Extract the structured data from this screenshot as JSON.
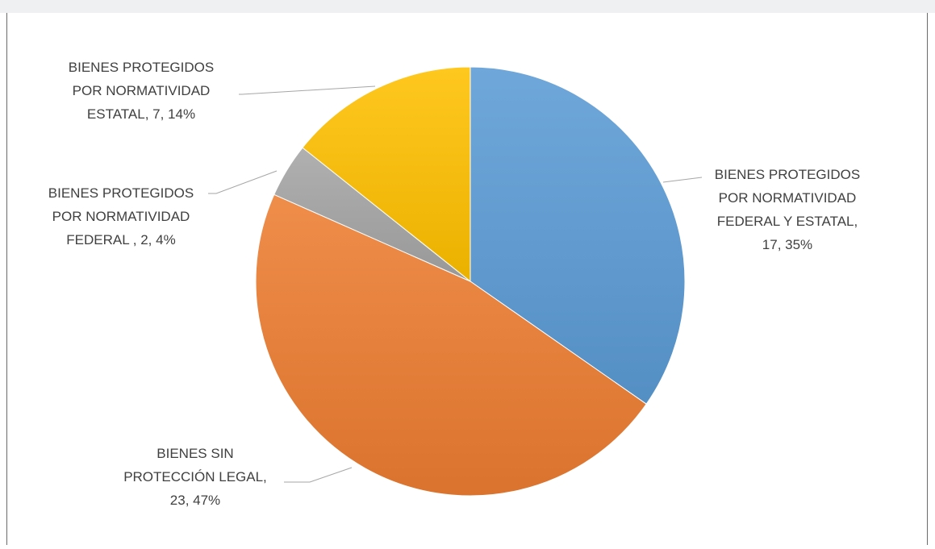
{
  "chart_data": {
    "type": "pie",
    "title": "",
    "slices": [
      {
        "category": "BIENES PROTEGIDOS POR NORMATIVIDAD FEDERAL Y ESTATAL",
        "value": 17,
        "percent": 35,
        "label_lines": [
          "BIENES PROTEGIDOS",
          "POR NORMATIVIDAD",
          "FEDERAL Y ESTATAL,",
          "17, 35%"
        ],
        "color": "#5b9bd5"
      },
      {
        "category": "BIENES SIN PROTECCIÓN LEGAL",
        "value": 23,
        "percent": 47,
        "label_lines": [
          "BIENES SIN",
          "PROTECCIÓN LEGAL,",
          "23, 47%"
        ],
        "color": "#ed7d31"
      },
      {
        "category": "BIENES PROTEGIDOS POR NORMATIVIDAD FEDERAL",
        "value": 2,
        "percent": 4,
        "label_lines": [
          "BIENES PROTEGIDOS",
          "POR NORMATIVIDAD",
          "FEDERAL  , 2, 4%"
        ],
        "color": "#a5a5a5"
      },
      {
        "category": "BIENES PROTEGIDOS POR NORMATIVIDAD ESTATAL",
        "value": 7,
        "percent": 14,
        "label_lines": [
          "BIENES PROTEGIDOS",
          "POR NORMATIVIDAD",
          "ESTATAL, 7, 14%"
        ],
        "color": "#ffc000"
      }
    ]
  }
}
